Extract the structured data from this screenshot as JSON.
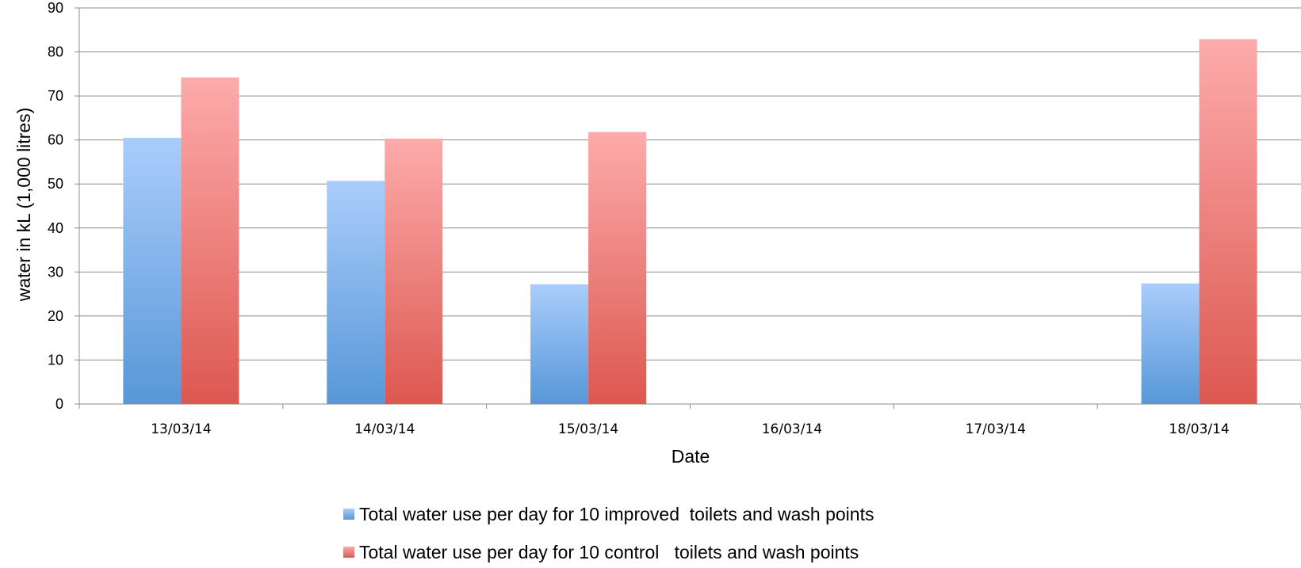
{
  "chart_data": {
    "type": "bar",
    "categories": [
      "13/03/14",
      "14/03/14",
      "15/03/14",
      "16/03/14",
      "17/03/14",
      "18/03/14"
    ],
    "series": [
      {
        "name": "Total water use per day for 10 improved  toilets and wash points",
        "values": [
          60.5,
          50.7,
          27.2,
          null,
          null,
          27.4
        ],
        "color_light": "#aacdfb",
        "color_dark": "#5797d8"
      },
      {
        "name": "Total water use per day for 10 control   toilets and wash points",
        "values": [
          74.2,
          60.3,
          61.8,
          null,
          null,
          82.9
        ],
        "color_light": "#fdabab",
        "color_dark": "#dc5850"
      }
    ],
    "xlabel": "Date",
    "ylabel": "water in kL (1,000 litres)",
    "ylim": [
      0,
      90
    ],
    "yticks": [
      0,
      10,
      20,
      30,
      40,
      50,
      60,
      70,
      80,
      90
    ],
    "grid": true,
    "legend_position": "bottom"
  }
}
